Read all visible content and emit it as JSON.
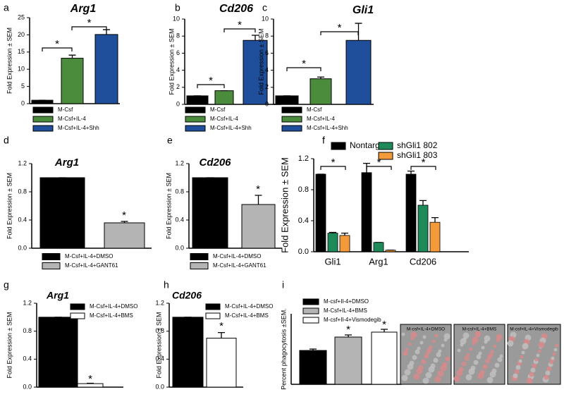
{
  "chart_data": [
    {
      "type": "bar",
      "panel": "a",
      "title": "Arg1",
      "ylabel": "Fold Expression ± SEM",
      "ylim": [
        0,
        25
      ],
      "yticks": [
        0,
        5,
        10,
        15,
        20,
        25
      ],
      "series": [
        {
          "name": "M-Csf",
          "color": "#000000",
          "values": [
            1
          ],
          "errors": [
            0
          ]
        },
        {
          "name": "M-Csf+IL-4",
          "color": "#4a8c3c",
          "values": [
            13.2
          ],
          "errors": [
            0.9
          ]
        },
        {
          "name": "M-Csf+IL-4+Shh",
          "color": "#1f4e9a",
          "values": [
            20.1
          ],
          "errors": [
            1.4
          ]
        }
      ],
      "annotations": [
        "*",
        "*"
      ]
    },
    {
      "type": "bar",
      "panel": "b",
      "title": "Cd206",
      "ylabel": "Fold Expression ± SEM",
      "ylim": [
        0,
        10
      ],
      "yticks": [
        0,
        2,
        4,
        6,
        8,
        10
      ],
      "series": [
        {
          "name": "M-Csf",
          "color": "#000000",
          "values": [
            1
          ],
          "errors": [
            0
          ]
        },
        {
          "name": "M-Csf+IL-4",
          "color": "#4a8c3c",
          "values": [
            1.6
          ],
          "errors": [
            0
          ]
        },
        {
          "name": "M-Csf+IL-4+Shh",
          "color": "#1f4e9a",
          "values": [
            7.5
          ],
          "errors": [
            0.6
          ]
        }
      ],
      "annotations": [
        "*",
        "*"
      ]
    },
    {
      "type": "bar",
      "panel": "c",
      "title": "Gli1",
      "ylabel": "Fold Expression ± SEM",
      "ylim": [
        0,
        10
      ],
      "yticks": [
        0,
        2,
        4,
        6,
        8,
        10
      ],
      "series": [
        {
          "name": "M-Csf",
          "color": "#000000",
          "values": [
            1
          ],
          "errors": [
            0
          ]
        },
        {
          "name": "M-Csf+IL-4",
          "color": "#4a8c3c",
          "values": [
            3
          ],
          "errors": [
            0.2
          ]
        },
        {
          "name": "M-Csf+IL-4+Shh",
          "color": "#1f4e9a",
          "values": [
            7.5
          ],
          "errors": [
            2.0
          ]
        }
      ],
      "annotations": [
        "*",
        "*"
      ]
    },
    {
      "type": "bar",
      "panel": "d",
      "title": "Arg1",
      "ylabel": "Fold Expression ± SEM",
      "ylim": [
        0,
        1.2
      ],
      "yticks": [
        {
          "value": 0,
          "label": "0.0"
        },
        0.4,
        0.8,
        1.2
      ],
      "series": [
        {
          "name": "M-Csf+IL-4+DMSO",
          "color": "#000000",
          "values": [
            1
          ],
          "errors": [
            0
          ]
        },
        {
          "name": "M-Csf+IL-4+GANT61",
          "color": "#b4b4b4",
          "values": [
            0.36
          ],
          "errors": [
            0.02
          ]
        }
      ],
      "annotations": [
        "*"
      ]
    },
    {
      "type": "bar",
      "panel": "e",
      "title": "Cd206",
      "ylabel": "Fold Expression ± SEM",
      "ylim": [
        0,
        1.2
      ],
      "yticks": [
        {
          "value": 0,
          "label": "0.0"
        },
        0.4,
        0.8,
        1.2
      ],
      "series": [
        {
          "name": "M-Csf+IL-4+DMSO",
          "color": "#000000",
          "values": [
            1
          ],
          "errors": [
            0
          ]
        },
        {
          "name": "M-Csf+IL-4+GANT61",
          "color": "#b4b4b4",
          "values": [
            0.62
          ],
          "errors": [
            0.13
          ]
        }
      ],
      "annotations": [
        "*"
      ]
    },
    {
      "type": "grouped-bar",
      "panel": "f",
      "ylabel": "Fold Expression ± SEM",
      "ylim": [
        0,
        1.2
      ],
      "yticks": [
        {
          "value": 0,
          "label": "0.0"
        },
        0.4,
        0.8,
        1.2
      ],
      "categories": [
        "Gli1",
        "Arg1",
        "Cd206"
      ],
      "series": [
        {
          "name": "Nontarget",
          "color": "#000000",
          "values": [
            1,
            1.02,
            1.0
          ],
          "errors": [
            0,
            0.12,
            0.04
          ]
        },
        {
          "name": "shGli1 802",
          "color": "#1e8a5a",
          "values": [
            0.24,
            0.12,
            0.6
          ],
          "errors": [
            0.01,
            0,
            0.06
          ]
        },
        {
          "name": "shGli1 803",
          "color": "#f39a3a",
          "values": [
            0.21,
            0.02,
            0.38
          ],
          "errors": [
            0.03,
            0,
            0.06
          ]
        }
      ],
      "annotations": [
        "*",
        "*",
        "*"
      ]
    },
    {
      "type": "bar",
      "panel": "g",
      "title": "Arg1",
      "ylabel": "Fold Expression ± SEM",
      "ylim": [
        0,
        1.2
      ],
      "yticks": [
        {
          "value": 0,
          "label": "0.0"
        },
        0.4,
        0.8,
        1.2
      ],
      "series": [
        {
          "name": "M-Csf+IL-4+DMSO",
          "color": "#000000",
          "values": [
            1
          ],
          "errors": [
            0
          ]
        },
        {
          "name": "M-Csf+IL-4+BMS",
          "color": "#ffffff",
          "values": [
            0.05
          ],
          "errors": [
            0.005
          ]
        }
      ],
      "annotations": [
        "*"
      ]
    },
    {
      "type": "bar",
      "panel": "h",
      "title": "Cd206",
      "ylabel": "Fold Expression ± SEM",
      "ylim": [
        0,
        1.2
      ],
      "yticks": [
        {
          "value": 0,
          "label": "0.0"
        },
        0.4,
        0.8,
        1.2
      ],
      "series": [
        {
          "name": "M-Csf+IL-4+DMSO",
          "color": "#000000",
          "values": [
            1
          ],
          "errors": [
            0
          ]
        },
        {
          "name": "M-Csf+IL-4+BMS",
          "color": "#ffffff",
          "values": [
            0.7
          ],
          "errors": [
            0.08
          ]
        }
      ],
      "annotations": [
        "*"
      ]
    },
    {
      "type": "bar",
      "panel": "i",
      "ylabel": "Percent phagocytosis ±SEM.",
      "ylim": [
        0,
        100
      ],
      "series": [
        {
          "name": "M-csf+Il-4+DMSO",
          "color": "#000000",
          "values": [
            48
          ],
          "errors": [
            2
          ]
        },
        {
          "name": "M-Csf+IL-4+BMS",
          "color": "#b4b4b4",
          "values": [
            67
          ],
          "errors": [
            3
          ]
        },
        {
          "name": "M-csf+Il-4+Vismodegib",
          "color": "#ffffff",
          "values": [
            74
          ],
          "errors": [
            4
          ]
        }
      ],
      "annotations": [
        "*",
        "*"
      ],
      "images": [
        "M-csf+IL-4+DMSO",
        "M-csf+IL-4+BMS",
        "M-csf+IL-4+Vismodegib"
      ]
    }
  ]
}
